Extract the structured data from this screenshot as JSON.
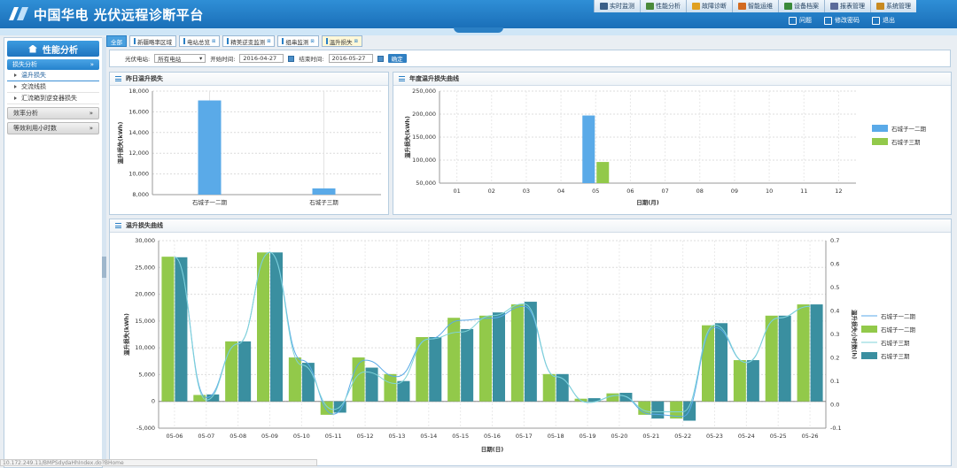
{
  "header": {
    "title": "中国华电 光伏远程诊断平台",
    "nav": [
      {
        "label": "实时监测",
        "icon": "monitor-icon",
        "color": "#3a5f88"
      },
      {
        "label": "性能分析",
        "icon": "chart-icon",
        "color": "#4a8a3a"
      },
      {
        "label": "故障诊断",
        "icon": "diagnosis-icon",
        "color": "#e0a020"
      },
      {
        "label": "智能运维",
        "icon": "maintenance-icon",
        "color": "#d26a20"
      },
      {
        "label": "设备档案",
        "icon": "archive-icon",
        "color": "#3a8a3a"
      },
      {
        "label": "报表管理",
        "icon": "report-icon",
        "color": "#5a6a9a"
      },
      {
        "label": "系统管理",
        "icon": "system-icon",
        "color": "#c88a20"
      }
    ],
    "user": {
      "name": "问题",
      "change_password": "修改密码",
      "logout": "退出"
    }
  },
  "sidebar": {
    "title": "性能分析",
    "groups": [
      {
        "label": "损失分析",
        "active": true,
        "items": [
          "温升损失",
          "交流线损",
          "汇流箱到逆变器损失"
        ]
      },
      {
        "label": "效率分析",
        "active": false
      },
      {
        "label": "等效利用小时数",
        "active": false
      }
    ]
  },
  "tabs": [
    {
      "label": "全部"
    },
    {
      "label": "新疆略率区域"
    },
    {
      "label": "电站总览",
      "closable": true
    },
    {
      "label": "精美逆变监测",
      "closable": true
    },
    {
      "label": "组串监测",
      "closable": true
    },
    {
      "label": "温升损失",
      "closable": true
    }
  ],
  "filter": {
    "station_label": "光伏电站:",
    "station_value": "所有电站",
    "start_label": "开始时间:",
    "start_value": "2016-04-27",
    "end_label": "结束时间:",
    "end_value": "2016-05-27",
    "confirm": "确定"
  },
  "panels": {
    "yesterday": {
      "title": "昨日温升损失"
    },
    "annual": {
      "title": "年度温升损失曲线"
    },
    "daily": {
      "title": "温升损失曲线"
    }
  },
  "status_url": "10.172.249.11/BMPSdydaHhIndex.do?BHome",
  "colors": {
    "series1": "#5aaae8",
    "series2": "#92c94a",
    "series3": "#3a8fa0"
  },
  "chart_data": [
    {
      "type": "bar",
      "title": "昨日温升损失",
      "categories": [
        "石城子一二期",
        "石城子三期"
      ],
      "values": [
        17100,
        8600
      ],
      "ylabel": "温升损失(kWh)",
      "ylim": [
        8000,
        18000
      ],
      "yticks": [
        8000,
        10000,
        12000,
        14000,
        16000,
        18000
      ],
      "grid": true
    },
    {
      "type": "bar",
      "title": "年度温升损失曲线",
      "categories": [
        "01",
        "02",
        "03",
        "04",
        "05",
        "06",
        "07",
        "08",
        "09",
        "10",
        "11",
        "12"
      ],
      "series": [
        {
          "name": "石城子一二期",
          "values": [
            0,
            0,
            0,
            0,
            197000,
            0,
            0,
            0,
            0,
            0,
            0,
            0
          ]
        },
        {
          "name": "石城子三期",
          "values": [
            0,
            0,
            0,
            0,
            96000,
            0,
            0,
            0,
            0,
            0,
            0,
            0
          ]
        }
      ],
      "xlabel": "日期(月)",
      "ylabel": "温升损失(kWh)",
      "ylim": [
        50000,
        250000
      ],
      "yticks": [
        50000,
        100000,
        150000,
        200000,
        250000
      ],
      "legend": "right",
      "grid": true
    },
    {
      "type": "bar",
      "title": "温升损失曲线",
      "categories": [
        "05-06",
        "05-07",
        "05-08",
        "05-09",
        "05-10",
        "05-11",
        "05-12",
        "05-13",
        "05-14",
        "05-15",
        "05-16",
        "05-17",
        "05-18",
        "05-19",
        "05-20",
        "05-21",
        "05-22",
        "05-23",
        "05-24",
        "05-25",
        "05-26"
      ],
      "series": [
        {
          "name": "石城子一二期",
          "axis": "right",
          "kind": "line",
          "values": [
            0.63,
            0.03,
            0.26,
            0.65,
            0.19,
            -0.04,
            0.19,
            0.12,
            0.28,
            0.36,
            0.37,
            0.42,
            0.12,
            0.01,
            0.04,
            -0.04,
            -0.05,
            0.33,
            0.18,
            0.37,
            0.42
          ]
        },
        {
          "name": "石城子一二期",
          "axis": "left",
          "kind": "bar",
          "values": [
            27000,
            1200,
            11200,
            27800,
            8200,
            -2500,
            8200,
            5100,
            12000,
            15600,
            16000,
            18100,
            5100,
            500,
            1500,
            -2500,
            -3200,
            14200,
            7700,
            16000,
            18100
          ]
        },
        {
          "name": "石城子三期",
          "axis": "right",
          "kind": "line",
          "values": [
            0.63,
            0.02,
            0.26,
            0.65,
            0.17,
            -0.02,
            0.14,
            0.09,
            0.28,
            0.31,
            0.38,
            0.43,
            0.12,
            0.01,
            0.04,
            -0.03,
            -0.03,
            0.34,
            0.18,
            0.37,
            0.42
          ]
        },
        {
          "name": "石城子三期",
          "axis": "left",
          "kind": "bar",
          "values": [
            26900,
            1300,
            11200,
            27800,
            7200,
            -2100,
            6300,
            3800,
            12000,
            13500,
            16600,
            18600,
            5100,
            600,
            1600,
            -3200,
            -3600,
            14600,
            7700,
            16000,
            18100
          ]
        }
      ],
      "xlabel": "日期(日)",
      "ylabel": "温升损失(kWh)",
      "y2label": "温升损失小时数(h)",
      "ylim": [
        -5000,
        30000
      ],
      "yticks": [
        -5000,
        0,
        5000,
        10000,
        15000,
        20000,
        25000,
        30000
      ],
      "y2lim": [
        -0.1,
        0.7
      ],
      "y2ticks": [
        -0.1,
        0,
        0.1,
        0.2,
        0.3,
        0.4,
        0.5,
        0.6,
        0.7
      ],
      "legend": "right",
      "grid": true
    }
  ]
}
